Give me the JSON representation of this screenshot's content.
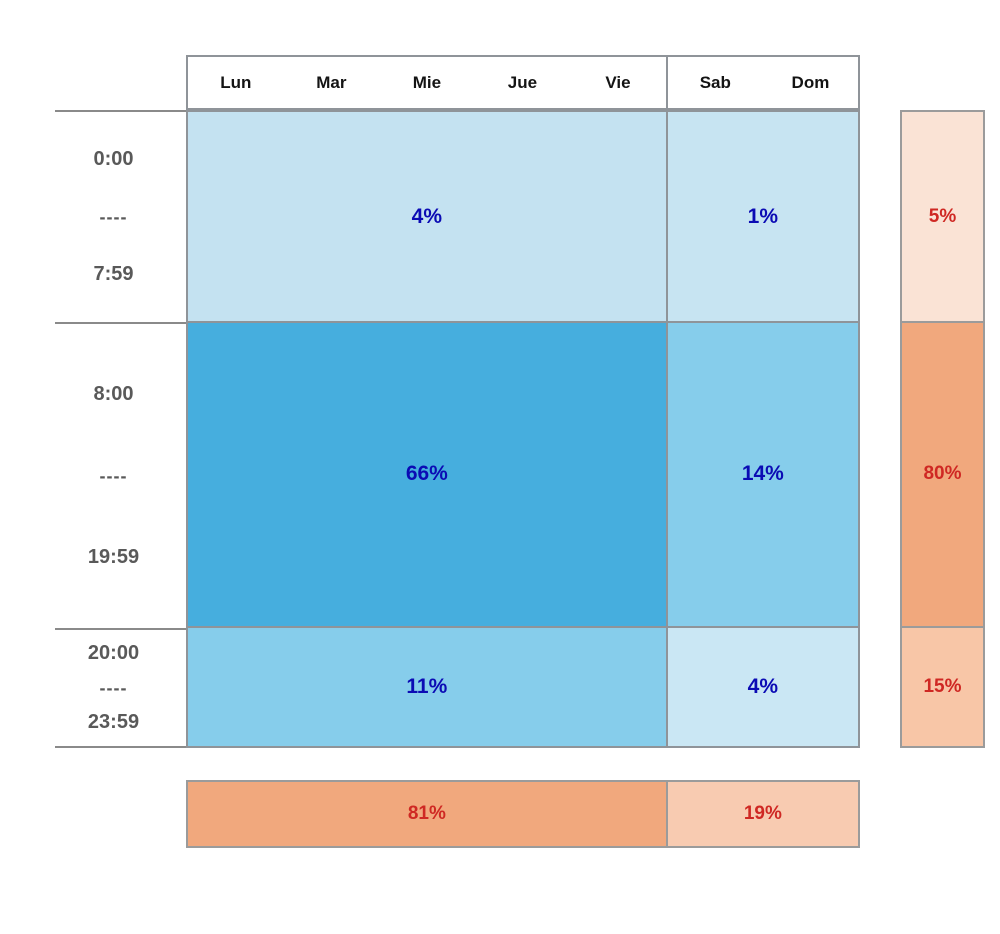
{
  "figure": {
    "header": {
      "days": [
        "Lun",
        "Mar",
        "Mie",
        "Jue",
        "Vie",
        "Sab",
        "Dom"
      ]
    },
    "time_rows": [
      {
        "start": "0:00",
        "sep": "----",
        "end": "7:59"
      },
      {
        "start": "8:00",
        "sep": "----",
        "end": "19:59"
      },
      {
        "start": "20:00",
        "sep": "----",
        "end": "23:59"
      }
    ],
    "cells": {
      "r0_weekdays": "4%",
      "r0_weekend": "1%",
      "r1_weekdays": "66%",
      "r1_weekend": "14%",
      "r2_weekdays": "11%",
      "r2_weekend": "4%"
    },
    "row_totals": {
      "r0": "5%",
      "r1": "80%",
      "r2": "15%"
    },
    "col_totals": {
      "weekdays": "81%",
      "weekend": "19%"
    }
  },
  "colors": {
    "cell_r0_weekdays": "#c4e2f1",
    "cell_r0_weekend": "#c7e4f2",
    "cell_r1_weekdays": "#46aede",
    "cell_r1_weekend": "#86cdeb",
    "cell_r2_weekdays": "#86cdeb",
    "cell_r2_weekend": "#cae7f4",
    "total_r0": "#fae3d5",
    "total_r1": "#f1a87d",
    "total_r2": "#f8c6a7",
    "total_weekdays": "#f1a87d",
    "total_weekend": "#f8cbb1",
    "value_text_blue": "#0b0bb4",
    "total_text_red": "#cf2823",
    "grid_border": "#8f9499",
    "time_text": "#595959",
    "day_text": "#141414"
  },
  "chart_data": {
    "type": "heatmap",
    "title": "",
    "xlabel": "",
    "ylabel": "",
    "day_labels": [
      "Lun",
      "Mar",
      "Mie",
      "Jue",
      "Vie",
      "Sab",
      "Dom"
    ],
    "column_groups": [
      "Lun-Vie (weekdays)",
      "Sab-Dom (weekend)"
    ],
    "time_bins": [
      "0:00 - 7:59",
      "8:00 - 19:59",
      "20:00 - 23:59"
    ],
    "values_percent": [
      [
        4,
        1
      ],
      [
        66,
        14
      ],
      [
        11,
        4
      ]
    ],
    "row_totals_percent": [
      5,
      80,
      15
    ],
    "col_totals_percent": [
      81,
      19
    ],
    "legend": "none",
    "grid": "on"
  }
}
